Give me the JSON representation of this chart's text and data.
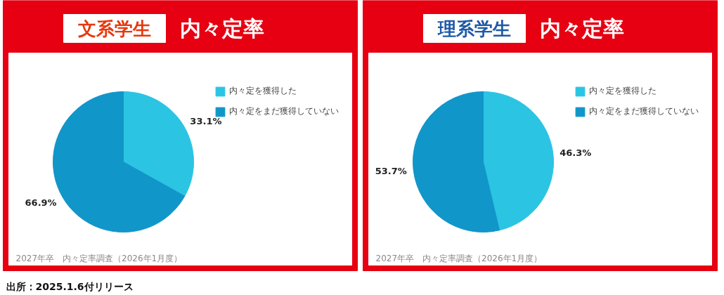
{
  "chart_data": [
    {
      "type": "pie",
      "title": "文系学生",
      "subtitle": "内々定率",
      "categories": [
        "内々定を獲得した",
        "内々定をまだ獲得していない"
      ],
      "values": [
        33.1,
        66.9
      ],
      "colors": [
        "#2bc4e3",
        "#1196c9"
      ],
      "value_labels": [
        "33.1%",
        "66.9%"
      ],
      "legend": "right",
      "annotations": [
        "2027年卒　内々定率調査（2026年1月度）",
        "出所：2025.1.6付リリース"
      ]
    },
    {
      "type": "pie",
      "title": "理系学生",
      "subtitle": "内々定率",
      "categories": [
        "内々定を獲得した",
        "内々定をまだ獲得していない"
      ],
      "values": [
        46.3,
        53.7
      ],
      "colors": [
        "#2bc4e3",
        "#1196c9"
      ],
      "value_labels": [
        "46.3%",
        "53.7%"
      ],
      "legend": "right",
      "annotations": [
        "2027年卒　内々定率調査（2026年1月度）"
      ]
    }
  ]
}
